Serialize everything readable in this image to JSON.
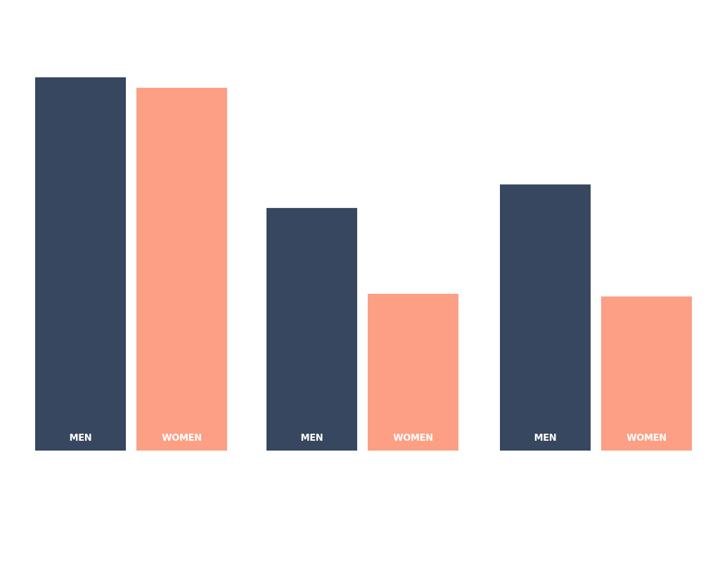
{
  "chart_data": {
    "type": "bar",
    "title": "",
    "xlabel": "",
    "ylabel": "",
    "categories": [
      "",
      "",
      ""
    ],
    "ylim": [
      0,
      100
    ],
    "grid": false,
    "legend": "none",
    "series": [
      {
        "name": "MEN",
        "label": "MEN",
        "color": "#36475f",
        "values": [
          100,
          65,
          71.3
        ]
      },
      {
        "name": "WOMEN",
        "label": "WOMEN",
        "color": "#fc9f84",
        "values": [
          97.2,
          42,
          41.3
        ]
      }
    ]
  }
}
